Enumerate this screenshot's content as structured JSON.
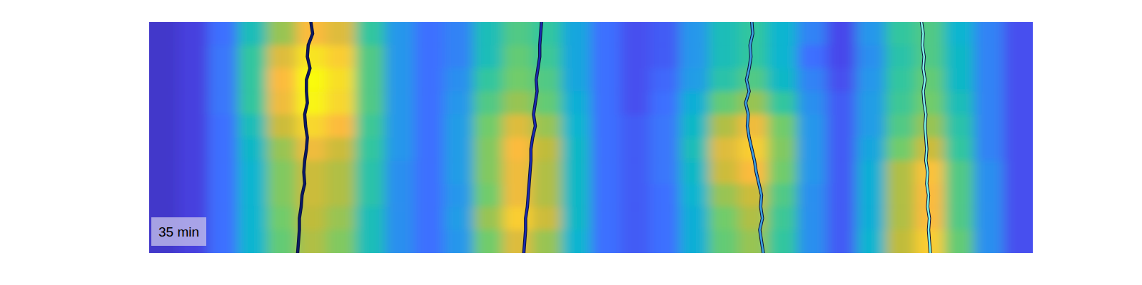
{
  "chart_data": {
    "type": "heatmap",
    "annotation": "35 min",
    "tick_labels": false,
    "xlim": [
      0,
      100
    ],
    "ylim": [
      0,
      100
    ],
    "zlim": [
      0,
      1
    ],
    "z": [
      [
        0.05,
        0.08,
        0.2,
        0.45,
        0.65,
        0.8,
        0.75,
        0.5,
        0.3,
        0.2,
        0.25,
        0.45,
        0.55,
        0.5,
        0.35,
        0.2,
        0.12,
        0.15,
        0.3,
        0.45,
        0.5,
        0.4,
        0.25,
        0.1,
        0.3,
        0.5,
        0.55,
        0.4,
        0.25,
        0.12
      ],
      [
        0.05,
        0.08,
        0.22,
        0.5,
        0.75,
        0.92,
        0.85,
        0.55,
        0.3,
        0.2,
        0.25,
        0.45,
        0.58,
        0.52,
        0.35,
        0.2,
        0.12,
        0.15,
        0.3,
        0.45,
        0.5,
        0.4,
        0.2,
        0.1,
        0.28,
        0.48,
        0.55,
        0.42,
        0.25,
        0.12
      ],
      [
        0.05,
        0.08,
        0.22,
        0.5,
        0.8,
        1.0,
        0.9,
        0.55,
        0.3,
        0.2,
        0.28,
        0.5,
        0.6,
        0.55,
        0.35,
        0.2,
        0.12,
        0.18,
        0.32,
        0.48,
        0.55,
        0.42,
        0.25,
        0.12,
        0.3,
        0.5,
        0.58,
        0.42,
        0.25,
        0.12
      ],
      [
        0.05,
        0.08,
        0.22,
        0.5,
        0.78,
        0.98,
        0.88,
        0.55,
        0.3,
        0.2,
        0.3,
        0.55,
        0.65,
        0.58,
        0.38,
        0.2,
        0.12,
        0.2,
        0.38,
        0.58,
        0.65,
        0.5,
        0.28,
        0.15,
        0.32,
        0.52,
        0.6,
        0.45,
        0.25,
        0.12
      ],
      [
        0.05,
        0.08,
        0.2,
        0.45,
        0.72,
        0.88,
        0.8,
        0.52,
        0.3,
        0.2,
        0.32,
        0.6,
        0.75,
        0.65,
        0.4,
        0.2,
        0.15,
        0.22,
        0.42,
        0.68,
        0.78,
        0.6,
        0.3,
        0.15,
        0.32,
        0.55,
        0.65,
        0.48,
        0.25,
        0.12
      ],
      [
        0.05,
        0.08,
        0.2,
        0.42,
        0.65,
        0.78,
        0.72,
        0.5,
        0.3,
        0.2,
        0.32,
        0.62,
        0.8,
        0.7,
        0.42,
        0.2,
        0.15,
        0.22,
        0.45,
        0.75,
        0.85,
        0.62,
        0.3,
        0.15,
        0.35,
        0.6,
        0.72,
        0.5,
        0.25,
        0.12
      ],
      [
        0.05,
        0.08,
        0.2,
        0.4,
        0.62,
        0.72,
        0.68,
        0.48,
        0.28,
        0.2,
        0.32,
        0.62,
        0.78,
        0.68,
        0.42,
        0.2,
        0.15,
        0.22,
        0.42,
        0.72,
        0.8,
        0.6,
        0.3,
        0.15,
        0.38,
        0.68,
        0.82,
        0.55,
        0.28,
        0.12
      ],
      [
        0.05,
        0.08,
        0.2,
        0.4,
        0.62,
        0.72,
        0.68,
        0.48,
        0.28,
        0.2,
        0.3,
        0.6,
        0.78,
        0.68,
        0.42,
        0.2,
        0.15,
        0.2,
        0.4,
        0.65,
        0.72,
        0.55,
        0.28,
        0.15,
        0.38,
        0.68,
        0.8,
        0.55,
        0.28,
        0.12
      ],
      [
        0.05,
        0.08,
        0.2,
        0.4,
        0.6,
        0.7,
        0.65,
        0.45,
        0.28,
        0.2,
        0.32,
        0.65,
        0.85,
        0.72,
        0.42,
        0.2,
        0.15,
        0.2,
        0.38,
        0.6,
        0.68,
        0.52,
        0.28,
        0.15,
        0.38,
        0.68,
        0.8,
        0.55,
        0.28,
        0.12
      ],
      [
        0.05,
        0.08,
        0.2,
        0.4,
        0.58,
        0.68,
        0.62,
        0.45,
        0.28,
        0.2,
        0.3,
        0.6,
        0.75,
        0.65,
        0.4,
        0.2,
        0.15,
        0.2,
        0.38,
        0.58,
        0.65,
        0.5,
        0.28,
        0.15,
        0.4,
        0.7,
        0.85,
        0.58,
        0.28,
        0.12
      ]
    ],
    "series": [
      {
        "type": "line",
        "color": "#0b1a66",
        "x": [
          18.3,
          18.5,
          18.0,
          17.9,
          18.2,
          17.8,
          17.8,
          17.9,
          17.6,
          17.7,
          17.9,
          17.8,
          17.6,
          17.5,
          17.6,
          17.3,
          17.2,
          17.0,
          17.0,
          16.9,
          16.8
        ],
        "y": [
          0,
          5,
          10,
          15,
          20,
          25,
          30,
          35,
          40,
          45,
          50,
          55,
          60,
          65,
          70,
          75,
          80,
          85,
          90,
          95,
          100
        ]
      },
      {
        "type": "line",
        "color": "#1a2bb0",
        "x": [
          44.4,
          44.3,
          44.2,
          44.2,
          44.0,
          43.8,
          43.9,
          43.7,
          43.5,
          43.7,
          43.4,
          43.2,
          43.2,
          43.1,
          43.0,
          42.9,
          42.8,
          42.6,
          42.6,
          42.5,
          42.4
        ],
        "y": [
          0,
          5,
          10,
          15,
          20,
          25,
          30,
          35,
          40,
          45,
          50,
          55,
          60,
          65,
          70,
          75,
          80,
          85,
          90,
          95,
          100
        ]
      },
      {
        "type": "line",
        "color": "#3b9fe0",
        "x": [
          68.2,
          68.3,
          68.0,
          68.1,
          67.9,
          67.6,
          67.9,
          67.5,
          67.8,
          67.7,
          67.9,
          68.2,
          68.5,
          68.7,
          69.0,
          69.3,
          69.2,
          69.4,
          69.1,
          69.3,
          69.5
        ],
        "y": [
          0,
          5,
          10,
          15,
          20,
          25,
          30,
          35,
          40,
          45,
          50,
          55,
          60,
          65,
          70,
          75,
          80,
          85,
          90,
          95,
          100
        ]
      },
      {
        "type": "line",
        "color": "#7ff5e6",
        "x": [
          87.4,
          87.6,
          87.5,
          87.7,
          87.6,
          87.8,
          87.6,
          87.7,
          87.9,
          87.8,
          87.9,
          88.0,
          87.9,
          88.1,
          88.0,
          88.2,
          88.1,
          88.3,
          88.2,
          88.3,
          88.4
        ],
        "y": [
          0,
          5,
          10,
          15,
          20,
          25,
          30,
          35,
          40,
          45,
          50,
          55,
          60,
          65,
          70,
          75,
          80,
          85,
          90,
          95,
          100
        ]
      }
    ]
  }
}
